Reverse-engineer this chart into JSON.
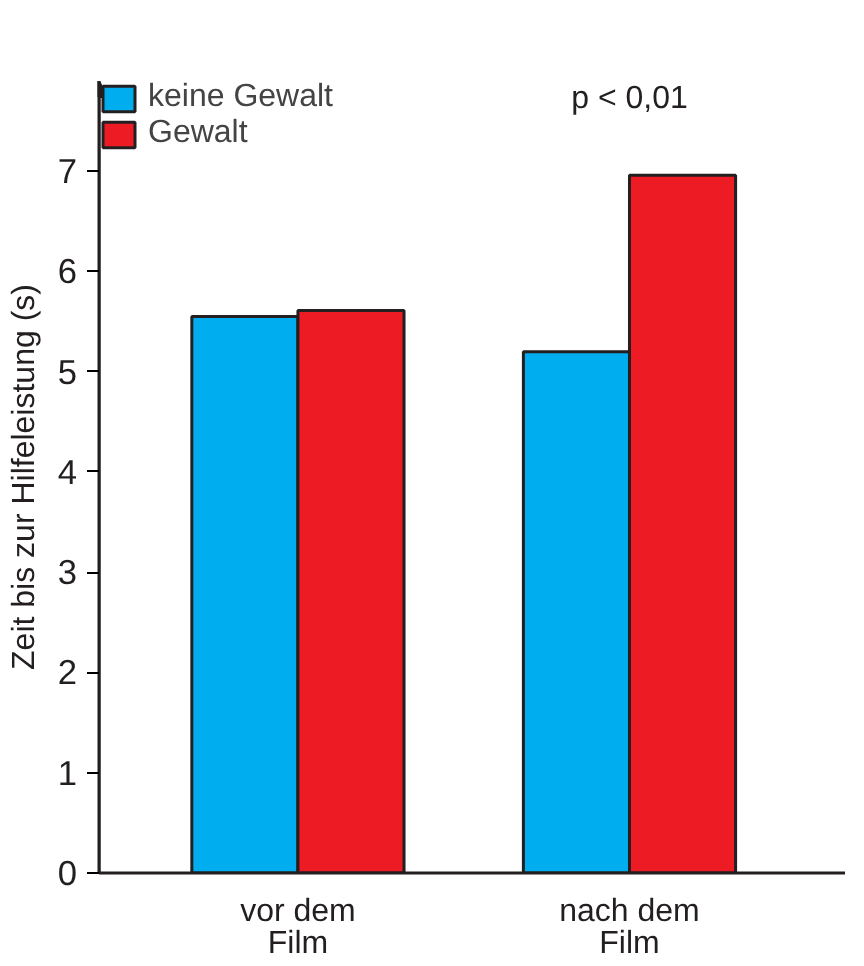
{
  "chart_data": {
    "type": "bar",
    "ylabel": "Zeit bis zur Hilfeleistung (s)",
    "categories": [
      "vor dem\nFilm",
      "nach dem\nFilm"
    ],
    "series": [
      {
        "name": "keine Gewalt",
        "color": "#00aeef",
        "values": [
          5.55,
          5.2
        ]
      },
      {
        "name": "Gewalt",
        "color": "#ed1c24",
        "values": [
          5.61,
          6.96
        ]
      }
    ],
    "ylim": [
      0,
      7.9
    ],
    "yticks": [
      0,
      1,
      2,
      3,
      4,
      5,
      6,
      7
    ],
    "grid": false,
    "legend": "top left",
    "annotations": [
      "p < 0,01"
    ]
  }
}
